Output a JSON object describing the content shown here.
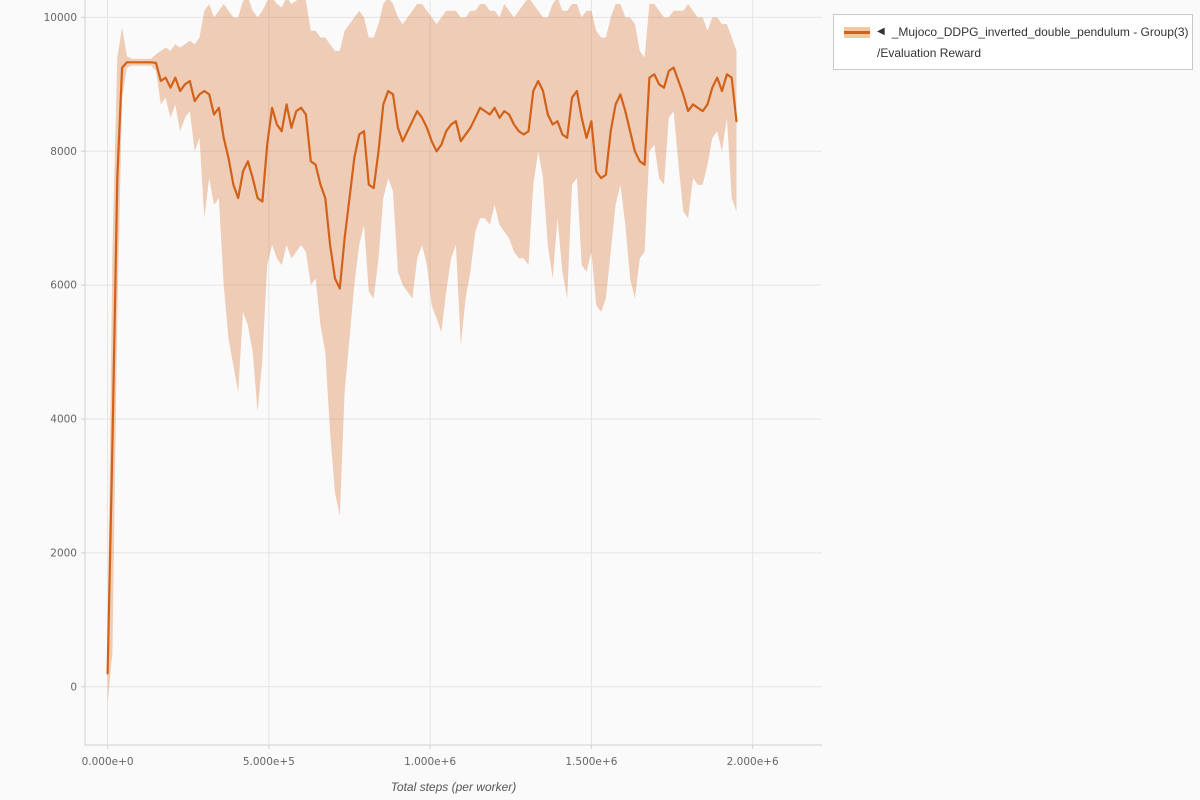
{
  "page": {
    "background": "#fafafa"
  },
  "legend": {
    "collapse_icon": "◀",
    "series_label": "_Mujoco_DDPG_inverted_double_pendulum - Group(3)",
    "metric_label": "/Evaluation Reward"
  },
  "chart_data": {
    "type": "line",
    "title": "",
    "xlabel": "Total steps (per worker)",
    "ylabel": "",
    "grid": true,
    "legend_position": "top-right",
    "legend_entries": [
      "_Mujoco_DDPG_inverted_double_pendulum - Group(3)/Evaluation Reward"
    ],
    "xlim": [
      -70000,
      2215000
    ],
    "ylim": [
      -870,
      10260
    ],
    "x_ticks": {
      "values": [
        0,
        500000,
        1000000,
        1500000,
        2000000
      ],
      "labels": [
        "0.000e+0",
        "5.000e+5",
        "1.000e+6",
        "1.500e+6",
        "2.000e+6"
      ]
    },
    "y_ticks": {
      "values": [
        0,
        2000,
        4000,
        6000,
        8000,
        10000
      ],
      "labels": [
        "0",
        "2000",
        "4000",
        "6000",
        "8000",
        "10000"
      ]
    },
    "colors": {
      "line": "#d2621a",
      "band": "rgba(213,99,26,0.30)",
      "grid": "#e4e4e4",
      "axis": "#d0d0d0",
      "tick_text": "#666666"
    },
    "series": [
      {
        "name": "_Mujoco_DDPG_inverted_double_pendulum - Group(3)/Evaluation Reward",
        "x": [
          0,
          15000,
          30000,
          45000,
          60000,
          75000,
          90000,
          105000,
          120000,
          135000,
          150000,
          165000,
          180000,
          195000,
          210000,
          225000,
          240000,
          255000,
          270000,
          285000,
          300000,
          315000,
          330000,
          345000,
          360000,
          375000,
          390000,
          405000,
          420000,
          435000,
          450000,
          465000,
          480000,
          495000,
          510000,
          525000,
          540000,
          555000,
          570000,
          585000,
          600000,
          615000,
          630000,
          645000,
          660000,
          675000,
          690000,
          705000,
          720000,
          735000,
          750000,
          765000,
          780000,
          795000,
          810000,
          825000,
          840000,
          855000,
          870000,
          885000,
          900000,
          915000,
          930000,
          945000,
          960000,
          975000,
          990000,
          1005000,
          1020000,
          1035000,
          1050000,
          1065000,
          1080000,
          1095000,
          1110000,
          1125000,
          1140000,
          1155000,
          1170000,
          1185000,
          1200000,
          1215000,
          1230000,
          1245000,
          1260000,
          1275000,
          1290000,
          1305000,
          1320000,
          1335000,
          1350000,
          1365000,
          1380000,
          1395000,
          1410000,
          1425000,
          1440000,
          1455000,
          1470000,
          1485000,
          1500000,
          1515000,
          1530000,
          1545000,
          1560000,
          1575000,
          1590000,
          1605000,
          1620000,
          1635000,
          1650000,
          1665000,
          1680000,
          1695000,
          1710000,
          1725000,
          1740000,
          1755000,
          1770000,
          1785000,
          1800000,
          1815000,
          1830000,
          1845000,
          1860000,
          1875000,
          1890000,
          1905000,
          1920000,
          1935000,
          1950000
        ],
        "mean": [
          200,
          3600,
          7600,
          9250,
          9330,
          9330,
          9330,
          9330,
          9330,
          9330,
          9320,
          9050,
          9100,
          8950,
          9100,
          8900,
          9000,
          9050,
          8750,
          8850,
          8900,
          8850,
          8550,
          8650,
          8200,
          7900,
          7500,
          7300,
          7700,
          7850,
          7600,
          7300,
          7250,
          8100,
          8650,
          8400,
          8300,
          8700,
          8350,
          8600,
          8650,
          8550,
          7850,
          7800,
          7500,
          7300,
          6600,
          6100,
          5950,
          6700,
          7300,
          7900,
          8250,
          8300,
          7500,
          7450,
          8000,
          8700,
          8900,
          8850,
          8350,
          8150,
          8300,
          8450,
          8600,
          8500,
          8350,
          8150,
          8000,
          8100,
          8300,
          8400,
          8450,
          8150,
          8250,
          8350,
          8500,
          8650,
          8600,
          8550,
          8650,
          8500,
          8600,
          8550,
          8400,
          8300,
          8250,
          8300,
          8900,
          9050,
          8900,
          8550,
          8400,
          8450,
          8250,
          8200,
          8800,
          8900,
          8500,
          8200,
          8450,
          7700,
          7600,
          7650,
          8300,
          8700,
          8850,
          8600,
          8300,
          8000,
          7850,
          7800,
          9100,
          9150,
          9000,
          8950,
          9200,
          9250,
          9050,
          8850,
          8600,
          8700,
          8650,
          8600,
          8700,
          8950,
          9100,
          8900,
          9150,
          9100,
          8450
        ],
        "lower": [
          -250,
          500,
          5500,
          8800,
          9250,
          9280,
          9280,
          9280,
          9280,
          9280,
          9200,
          8700,
          8800,
          8500,
          8700,
          8300,
          8500,
          8600,
          8000,
          8200,
          7000,
          7600,
          7200,
          7300,
          6000,
          5200,
          4800,
          4400,
          5600,
          5400,
          5000,
          4100,
          4900,
          6300,
          6600,
          6400,
          6300,
          6600,
          6400,
          6500,
          6600,
          6500,
          6000,
          6100,
          5400,
          5000,
          3800,
          2900,
          2550,
          4400,
          5200,
          6000,
          6600,
          6900,
          5900,
          5800,
          6400,
          7300,
          7600,
          7400,
          6200,
          6000,
          5900,
          5800,
          6400,
          6600,
          6300,
          5700,
          5500,
          5300,
          5900,
          6400,
          6600,
          5100,
          5800,
          6200,
          6800,
          7000,
          7000,
          6900,
          7200,
          6900,
          6800,
          6700,
          6500,
          6400,
          6400,
          6300,
          7500,
          8000,
          7600,
          6600,
          6100,
          7000,
          6200,
          5800,
          7500,
          7600,
          6300,
          6200,
          6500,
          5700,
          5600,
          5800,
          6500,
          7200,
          7500,
          6900,
          6100,
          5800,
          6400,
          6500,
          8000,
          8100,
          7600,
          7500,
          8500,
          8600,
          7800,
          7100,
          7000,
          7600,
          7500,
          7500,
          7800,
          8200,
          8300,
          8000,
          8500,
          7300,
          7100
        ],
        "upper": [
          650,
          6500,
          9400,
          9850,
          9420,
          9380,
          9380,
          9380,
          9380,
          9380,
          9450,
          9500,
          9550,
          9500,
          9600,
          9550,
          9600,
          9650,
          9600,
          9700,
          10100,
          10200,
          10000,
          10100,
          10200,
          10100,
          10000,
          10000,
          10250,
          10300,
          10100,
          10000,
          10100,
          10250,
          10300,
          10200,
          10150,
          10300,
          10200,
          10250,
          10300,
          10250,
          9800,
          9800,
          9700,
          9700,
          9600,
          9500,
          9500,
          9800,
          9900,
          10000,
          10100,
          10000,
          9700,
          9700,
          9900,
          10200,
          10300,
          10200,
          10000,
          9900,
          10000,
          10100,
          10200,
          10200,
          10100,
          10000,
          9900,
          10000,
          10100,
          10100,
          10100,
          10000,
          10000,
          10100,
          10100,
          10200,
          10200,
          10100,
          10100,
          10000,
          10200,
          10100,
          10000,
          10100,
          10200,
          10300,
          10200,
          10100,
          10000,
          10000,
          10200,
          10300,
          10100,
          10100,
          10200,
          10200,
          10000,
          10100,
          10100,
          9800,
          9700,
          9700,
          10000,
          10200,
          10200,
          10000,
          10000,
          9900,
          9500,
          9400,
          10200,
          10200,
          10100,
          10000,
          10000,
          10100,
          10100,
          10100,
          10200,
          10100,
          10000,
          10000,
          9800,
          10000,
          10000,
          9900,
          9900,
          9700,
          9500
        ]
      }
    ]
  }
}
